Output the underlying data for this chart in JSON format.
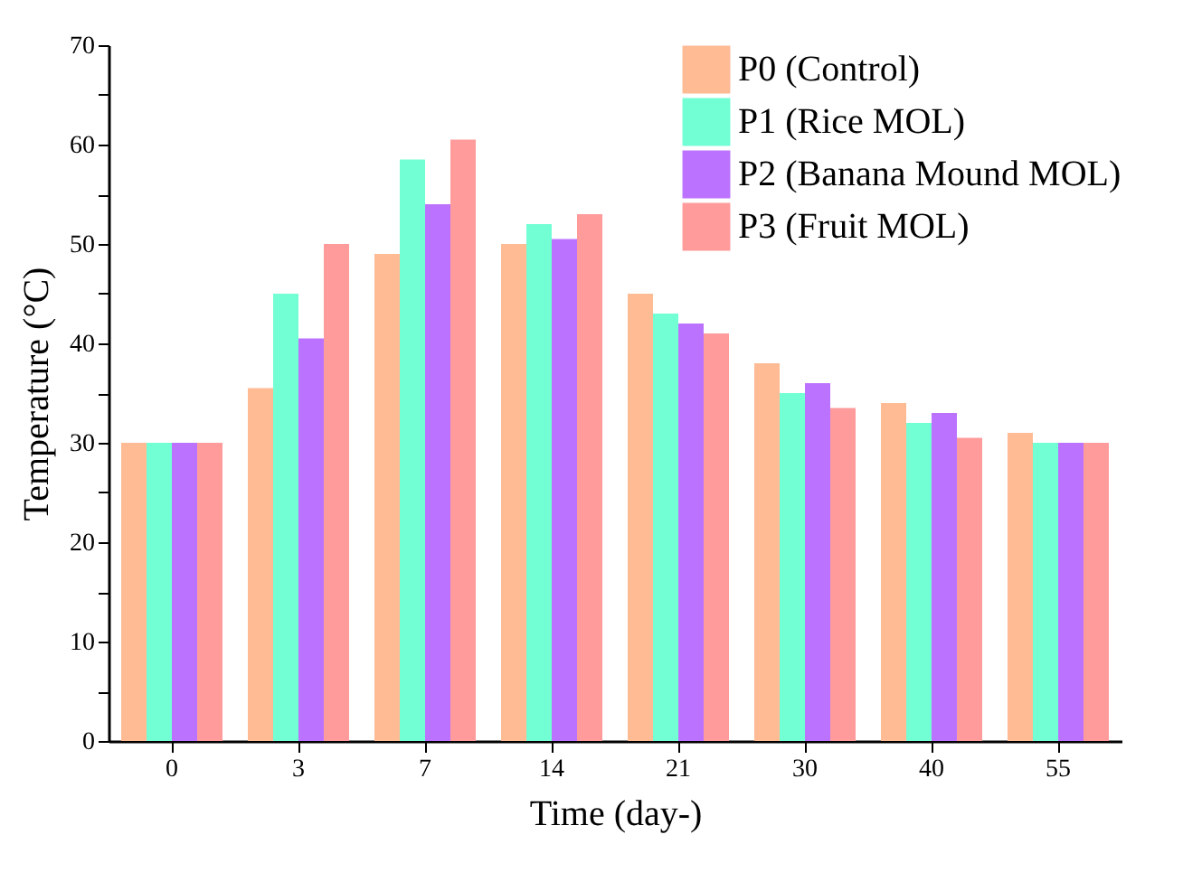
{
  "chart_data": {
    "type": "bar",
    "xlabel": "Time (day-)",
    "ylabel": "Temperature (°C)",
    "categories": [
      "0",
      "3",
      "7",
      "14",
      "21",
      "30",
      "40",
      "55"
    ],
    "series": [
      {
        "name": "P0 (Control)",
        "color": "#ffbb94",
        "values": [
          30,
          35.5,
          49,
          50,
          45,
          38,
          34,
          31
        ]
      },
      {
        "name": "P1 (Rice MOL)",
        "color": "#73ffd4",
        "values": [
          30,
          45,
          58.5,
          52,
          43,
          35,
          32,
          30
        ]
      },
      {
        "name": "P2 (Banana Mound MOL)",
        "color": "#bb73ff",
        "values": [
          30,
          40.5,
          54,
          50.5,
          42,
          36,
          33,
          30
        ]
      },
      {
        "name": "P3 (Fruit MOL)",
        "color": "#ff9b9b",
        "values": [
          30,
          50,
          60.5,
          53,
          41,
          33.5,
          30.5,
          30
        ]
      }
    ],
    "ylim": [
      0,
      70
    ],
    "yticks": [
      0,
      {
        "value": 5,
        "label": null
      },
      10,
      {
        "value": 15,
        "label": null
      },
      20,
      {
        "value": 25,
        "label": null
      },
      30,
      {
        "value": 35,
        "label": null
      },
      40,
      {
        "value": 45,
        "label": null
      },
      50,
      {
        "value": 55,
        "label": null
      },
      60,
      {
        "value": 65,
        "label": null
      },
      70
    ],
    "grid": false,
    "legend": "top right"
  }
}
